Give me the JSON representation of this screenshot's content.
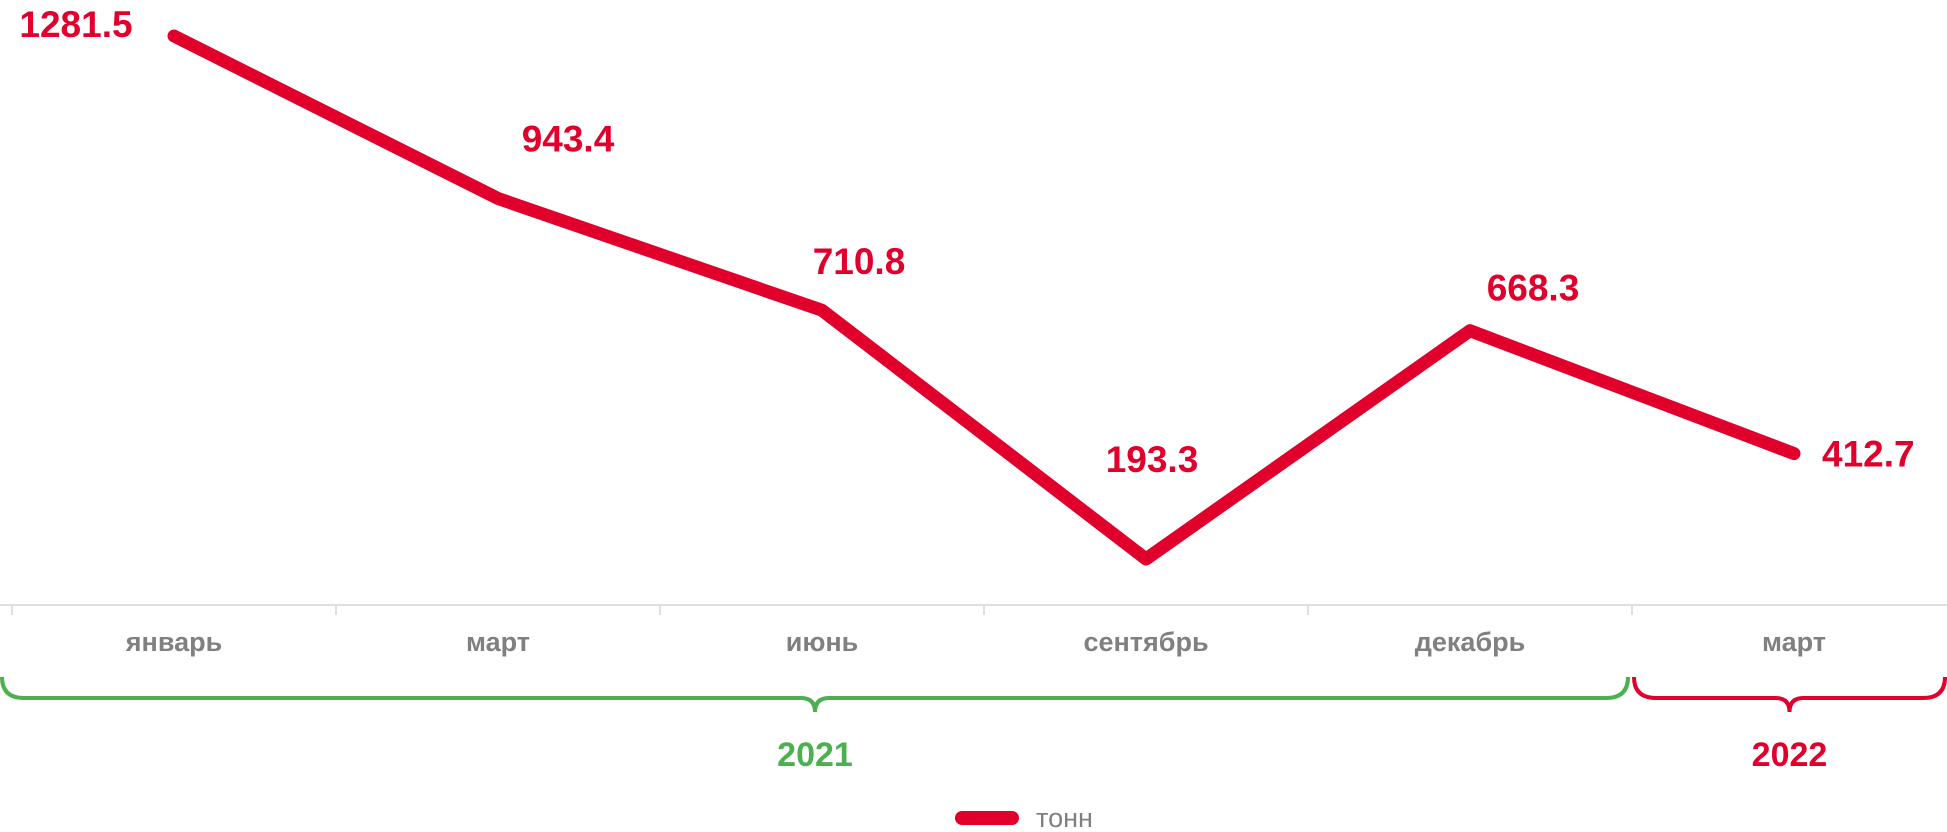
{
  "chart_data": {
    "type": "line",
    "categories": [
      "январь",
      "март",
      "июнь",
      "сентябрь",
      "декабрь",
      "март"
    ],
    "series": [
      {
        "name": "тонн",
        "color": "#e0002b",
        "values": [
          1281.5,
          943.4,
          710.8,
          193.3,
          668.3,
          412.7
        ]
      }
    ],
    "groups": [
      {
        "label": "2021",
        "color": "#4caf50",
        "from": 0,
        "to": 4
      },
      {
        "label": "2022",
        "color": "#e0002b",
        "from": 5,
        "to": 5
      }
    ]
  }
}
